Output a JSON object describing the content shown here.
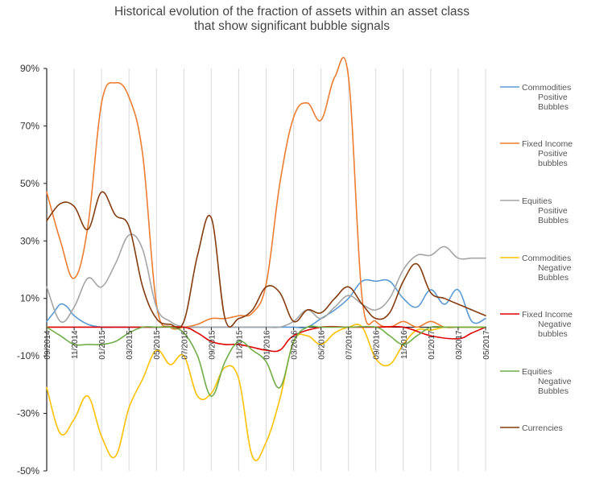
{
  "chart_data": {
    "type": "line",
    "title": [
      "Historical evolution of the fraction of assets within an asset class",
      "that show significant bubble signals"
    ],
    "xlabel": "",
    "ylabel": "",
    "ylim": [
      -50,
      90
    ],
    "y_ticks": [
      90,
      70,
      50,
      30,
      10,
      -10,
      -30,
      -50
    ],
    "y_tick_labels": [
      "90%",
      "70%",
      "50%",
      "30%",
      "10%",
      "-10%",
      "-30%",
      "-50%"
    ],
    "x_range": [
      0,
      32
    ],
    "x_tick_positions": [
      0,
      2,
      4,
      6,
      8,
      10,
      12,
      14,
      16,
      18,
      20,
      22,
      24,
      26,
      28,
      30,
      32
    ],
    "x_tick_labels": [
      "09/2014",
      "11/2014",
      "01/2015",
      "03/2015",
      "05/2015",
      "07/2015",
      "09/2015",
      "11/2015",
      "01/2016",
      "03/2016",
      "05/2016",
      "07/2016",
      "09/2016",
      "11/2016",
      "01/2017",
      "03/2017",
      "05/2017"
    ],
    "grid": "vertical",
    "legend_position": "right",
    "series": [
      {
        "name": "Commodities Positive Bubbles",
        "legend_lines": [
          "Commodities",
          "Positive",
          "Bubbles"
        ],
        "color": "#5b9bd5",
        "x": [
          0,
          0.5,
          1,
          1.5,
          2,
          3,
          4,
          5,
          6,
          7,
          8,
          9,
          10,
          11,
          12,
          13,
          14,
          15,
          16,
          17,
          18,
          19,
          20,
          21,
          22,
          23,
          24,
          25,
          26,
          27,
          28,
          29,
          30,
          31,
          32
        ],
        "y": [
          2,
          5,
          8,
          7,
          4,
          1,
          0,
          0,
          0,
          0,
          0,
          0,
          0,
          0,
          0,
          0,
          0,
          0,
          0,
          0,
          0,
          0,
          3,
          6,
          10,
          16,
          16,
          16,
          10,
          7,
          13,
          8,
          13,
          2,
          3
        ]
      },
      {
        "name": "Fixed Income Positive bubbles",
        "legend_lines": [
          "Fixed Income",
          "Positive",
          "bubbles"
        ],
        "color": "#ed7d31",
        "x": [
          0,
          1,
          2,
          3,
          4,
          5,
          6,
          7,
          8,
          9,
          10,
          11,
          12,
          13,
          14,
          15,
          16,
          17,
          18,
          19,
          20,
          21,
          22,
          23,
          24,
          25,
          26,
          27,
          28,
          29,
          30,
          31,
          32
        ],
        "y": [
          47,
          30,
          17,
          35,
          78,
          85,
          80,
          60,
          8,
          0,
          0,
          1,
          3,
          3,
          4,
          5,
          15,
          50,
          73,
          78,
          72,
          87,
          87,
          10,
          2,
          0,
          2,
          0,
          2,
          0,
          0,
          0,
          0
        ]
      },
      {
        "name": "Equities Positive Bubbles",
        "legend_lines": [
          "Equities",
          "Positive",
          "Bubbles"
        ],
        "color": "#a5a5a5",
        "x": [
          0,
          1,
          2,
          3,
          4,
          5,
          6,
          7,
          8,
          9,
          10,
          11,
          12,
          13,
          14,
          15,
          16,
          17,
          18,
          19,
          20,
          21,
          22,
          23,
          24,
          25,
          26,
          27,
          28,
          29,
          30,
          31,
          32
        ],
        "y": [
          14,
          2,
          7,
          17,
          14,
          22,
          32,
          27,
          7,
          2,
          0,
          0,
          0,
          0,
          0,
          0,
          0,
          0,
          2,
          6,
          3,
          7,
          11,
          8,
          6,
          10,
          20,
          25,
          25,
          28,
          24,
          24,
          24
        ]
      },
      {
        "name": "Commodities Negative Bubbles",
        "legend_lines": [
          "Commodities",
          "Negative",
          "Bubbles"
        ],
        "color": "#ffc000",
        "x": [
          0,
          1,
          2,
          3,
          4,
          5,
          6,
          7,
          8,
          9,
          10,
          11,
          12,
          13,
          14,
          15,
          16,
          17,
          18,
          19,
          20,
          21,
          22,
          23,
          24,
          25,
          26,
          27,
          28,
          29,
          30,
          31,
          32
        ],
        "y": [
          -21,
          -37,
          -32,
          -24,
          -38,
          -45,
          -28,
          -18,
          -8,
          -13,
          -10,
          -24,
          -23,
          -14,
          -18,
          -45,
          -40,
          -25,
          -5,
          -3,
          -6,
          -2,
          0,
          0,
          -11,
          -13,
          -6,
          -1,
          -1,
          0,
          0,
          0,
          0
        ]
      },
      {
        "name": "Fixed Income Negative bubbles",
        "legend_lines": [
          "Fixed Income",
          "Negative",
          "bubbles"
        ],
        "color": "#e00000",
        "x": [
          0,
          2,
          4,
          6,
          8,
          10,
          11,
          12,
          13,
          14,
          15,
          16,
          17,
          18,
          20,
          22,
          24,
          26,
          28,
          30,
          31,
          32
        ],
        "y": [
          0,
          0,
          0,
          0,
          0,
          0,
          -2,
          -5,
          -6,
          -6,
          -7,
          -8,
          -8,
          -3,
          0,
          0,
          0,
          0,
          -3,
          -4,
          -2,
          0
        ]
      },
      {
        "name": "Equities Negative Bubbles",
        "legend_lines": [
          "Equities",
          "Negative",
          "Bubbles"
        ],
        "color": "#70ad47",
        "x": [
          0,
          1,
          2,
          3,
          4,
          5,
          6,
          7,
          8,
          9,
          10,
          11,
          12,
          13,
          14,
          15,
          16,
          17,
          18,
          19,
          20,
          22,
          24,
          25,
          26,
          27,
          28,
          29,
          30,
          32
        ],
        "y": [
          0,
          -3,
          -6,
          -6,
          -6,
          -5,
          -2,
          0,
          0,
          0,
          -2,
          -10,
          -24,
          -12,
          -5,
          -8,
          -12,
          -21,
          -5,
          0,
          0,
          0,
          0,
          -3,
          -6,
          -3,
          0,
          0,
          0,
          0
        ]
      },
      {
        "name": "Currencies",
        "legend_lines": [
          "Currencies"
        ],
        "color": "#843c0c",
        "x": [
          0,
          1,
          2,
          3,
          4,
          5,
          6,
          7,
          8,
          9,
          10,
          11,
          12,
          13,
          14,
          15,
          16,
          17,
          18,
          19,
          20,
          21,
          22,
          23,
          24,
          25,
          26,
          27,
          28,
          29,
          30,
          31,
          32
        ],
        "y": [
          37,
          43,
          42,
          34,
          47,
          39,
          35,
          14,
          3,
          1,
          2,
          25,
          38,
          3,
          3,
          6,
          14,
          12,
          2,
          6,
          5,
          10,
          14,
          8,
          3,
          5,
          16,
          22,
          12,
          10,
          8,
          6,
          4
        ]
      }
    ]
  }
}
